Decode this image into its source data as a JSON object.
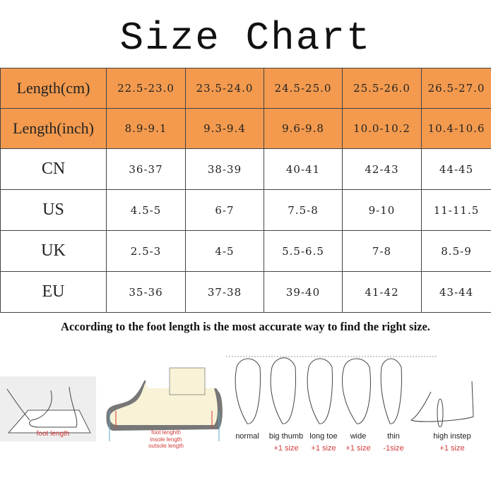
{
  "title": "Size Chart",
  "table": {
    "rows": [
      {
        "label": "Length(cm)",
        "values": [
          "22.5-23.0",
          "23.5-24.0",
          "24.5-25.0",
          "25.5-26.0",
          "26.5-27.0"
        ]
      },
      {
        "label": "Length(inch)",
        "values": [
          "8.9-9.1",
          "9.3-9.4",
          "9.6-9.8",
          "10.0-10.2",
          "10.4-10.6"
        ]
      },
      {
        "label": "CN",
        "values": [
          "36-37",
          "38-39",
          "40-41",
          "42-43",
          "44-45"
        ]
      },
      {
        "label": "US",
        "values": [
          "4.5-5",
          "6-7",
          "7.5-8",
          "9-10",
          "11-11.5"
        ]
      },
      {
        "label": "UK",
        "values": [
          "2.5-3",
          "4-5",
          "5.5-6.5",
          "7-8",
          "8.5-9"
        ]
      },
      {
        "label": "EU",
        "values": [
          "35-36",
          "37-38",
          "39-40",
          "41-42",
          "43-44"
        ]
      }
    ],
    "header_color": "#f39a4e"
  },
  "note": "According to the foot length is the most  accurate way to find the right size.",
  "measure": {
    "foot_length": "foot length"
  },
  "shoe": {
    "foot": "foot lenghth",
    "insole": "insole length",
    "outsole": "outsole length"
  },
  "foot_types": [
    {
      "name": "normal",
      "adjust": ""
    },
    {
      "name": "big thumb",
      "adjust": "+1 size"
    },
    {
      "name": "long toe",
      "adjust": "+1 size"
    },
    {
      "name": "wide",
      "adjust": "+1 size"
    },
    {
      "name": "thin",
      "adjust": "-1size"
    },
    {
      "name": "high instep",
      "adjust": "+1 size"
    }
  ]
}
